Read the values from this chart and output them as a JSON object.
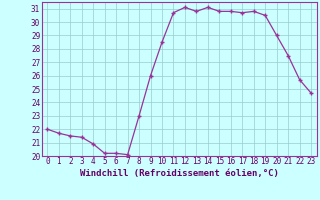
{
  "x": [
    0,
    1,
    2,
    3,
    4,
    5,
    6,
    7,
    8,
    9,
    10,
    11,
    12,
    13,
    14,
    15,
    16,
    17,
    18,
    19,
    20,
    21,
    22,
    23
  ],
  "y": [
    22,
    21.7,
    21.5,
    21.4,
    20.9,
    20.2,
    20.2,
    20.1,
    23.0,
    26.0,
    28.5,
    30.7,
    31.1,
    30.8,
    31.1,
    30.8,
    30.8,
    30.7,
    30.8,
    30.5,
    29.0,
    27.5,
    25.7,
    24.7
  ],
  "line_color": "#993399",
  "marker": "+",
  "marker_color": "#993399",
  "bg_color": "#ccffff",
  "grid_color": "#99cccc",
  "xlabel": "Windchill (Refroidissement éolien,°C)",
  "ylim": [
    20,
    31.5
  ],
  "xlim": [
    -0.5,
    23.5
  ],
  "yticks": [
    20,
    21,
    22,
    23,
    24,
    25,
    26,
    27,
    28,
    29,
    30,
    31
  ],
  "xticks": [
    0,
    1,
    2,
    3,
    4,
    5,
    6,
    7,
    8,
    9,
    10,
    11,
    12,
    13,
    14,
    15,
    16,
    17,
    18,
    19,
    20,
    21,
    22,
    23
  ],
  "tick_label_color": "#660066",
  "xlabel_color": "#660066",
  "tick_fontsize": 5.5,
  "xlabel_fontsize": 6.5,
  "spine_color": "#993399"
}
